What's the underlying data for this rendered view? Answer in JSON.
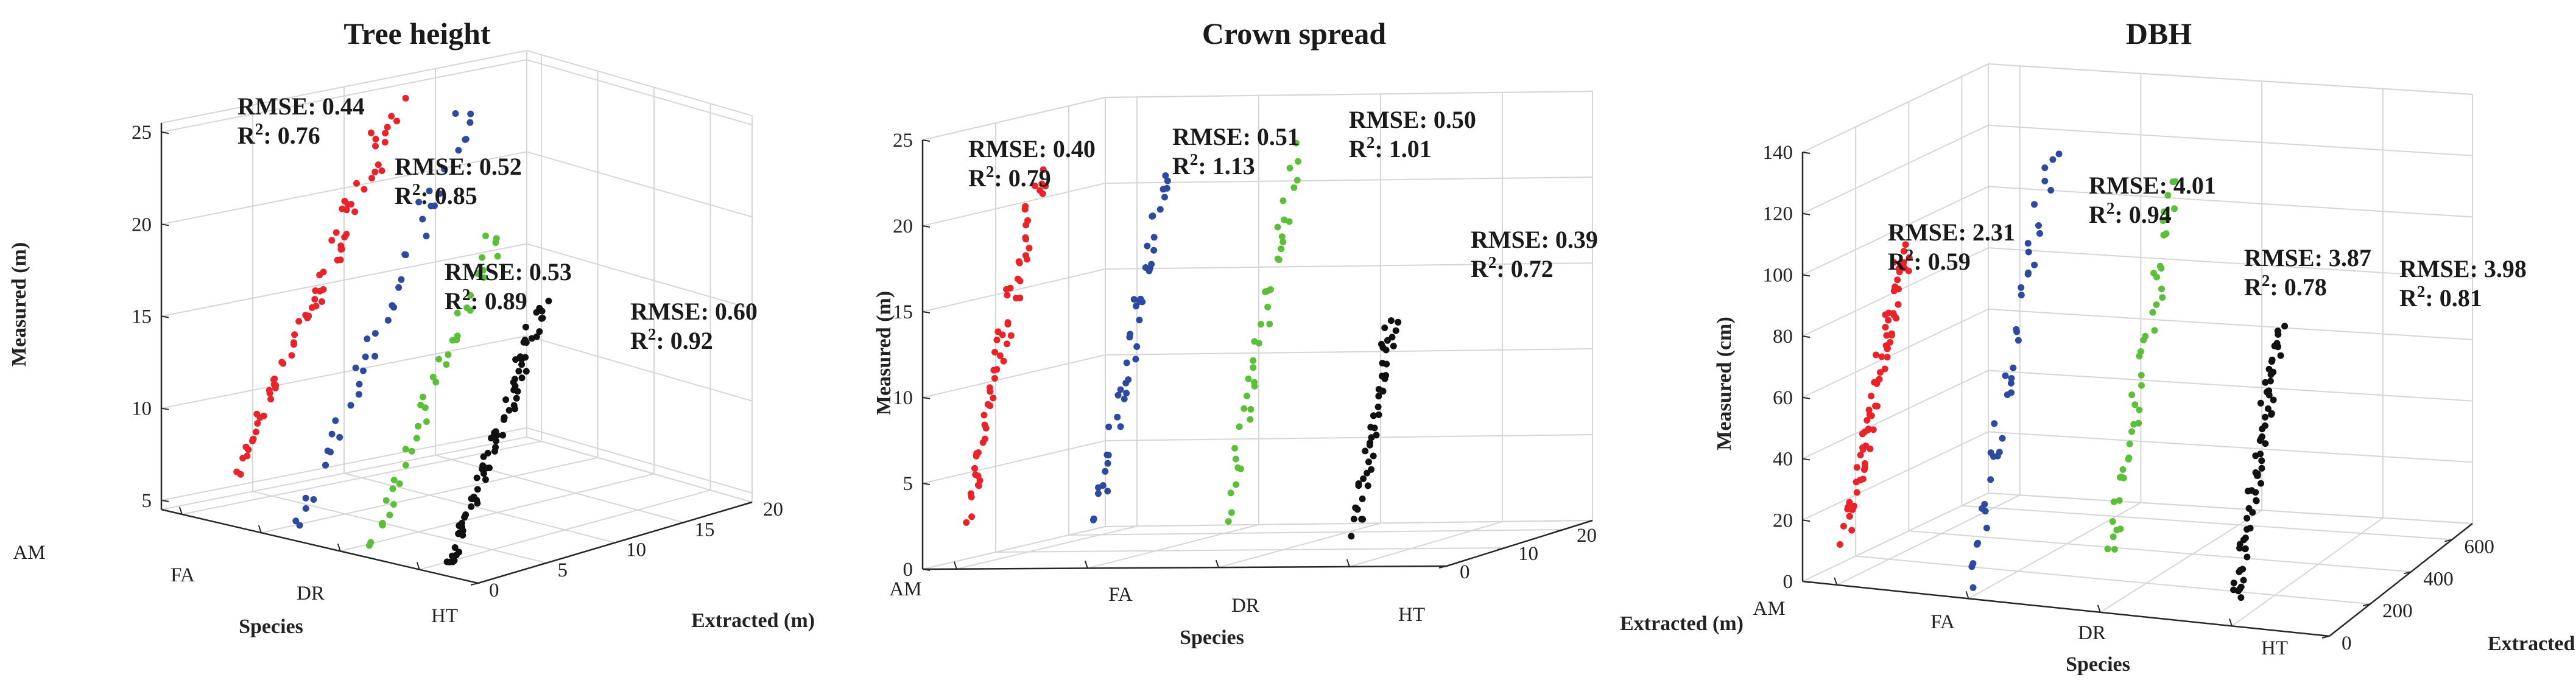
{
  "chart_data": [
    {
      "type": "scatter3d",
      "title": "Tree height",
      "xlabel": "Species",
      "ylabel": "Extracted (m)",
      "zlabel": "Measured (m)",
      "species": [
        "AM",
        "FA",
        "DR",
        "HT"
      ],
      "extracted_ticks": [
        "0",
        "5",
        "10",
        "15",
        "20"
      ],
      "measured_ticks": [
        "5",
        "10",
        "15",
        "20",
        "25"
      ],
      "extracted_range": [
        0,
        20
      ],
      "measured_range": [
        4.5,
        25.5
      ],
      "colors": [
        "#e8232a",
        "#2e4a9e",
        "#5bbf3a",
        "#111111"
      ],
      "annotations": [
        {
          "rmse": "RMSE: 0.44",
          "r2_label": "R",
          "r2_sup": "2",
          "r2_value": ": 0.76"
        },
        {
          "rmse": "RMSE: 0.52",
          "r2_label": "R",
          "r2_sup": "2",
          "r2_value": ": 0.85"
        },
        {
          "rmse": "RMSE: 0.53",
          "r2_label": "R",
          "r2_sup": "2",
          "r2_value": ": 0.89"
        },
        {
          "rmse": "RMSE: 0.60",
          "r2_label": "R",
          "r2_sup": "2",
          "r2_value": ": 0.92"
        }
      ],
      "series": [
        {
          "name": "AM",
          "range": [
            6,
            24
          ],
          "n": 70
        },
        {
          "name": "FA",
          "range": [
            4,
            25
          ],
          "n": 42
        },
        {
          "name": "DR",
          "range": [
            4,
            20
          ],
          "n": 40
        },
        {
          "name": "HT",
          "range": [
            4,
            17
          ],
          "n": 75
        }
      ]
    },
    {
      "type": "scatter3d",
      "title": "Crown spread",
      "xlabel": "Species",
      "ylabel": "Extracted (m)",
      "zlabel": "Measured (m)",
      "species": [
        "AM",
        "FA",
        "DR",
        "HT"
      ],
      "extracted_ticks": [
        "0",
        "10",
        "20"
      ],
      "measured_ticks": [
        "0",
        "5",
        "10",
        "15",
        "20",
        "25"
      ],
      "extracted_range": [
        0,
        25
      ],
      "measured_range": [
        0,
        25
      ],
      "colors": [
        "#e8232a",
        "#2e4a9e",
        "#5bbf3a",
        "#111111"
      ],
      "annotations": [
        {
          "rmse": "RMSE: 0.40",
          "r2_label": "R",
          "r2_sup": "2",
          "r2_value": ": 0.79"
        },
        {
          "rmse": "RMSE: 0.51",
          "r2_label": "R",
          "r2_sup": "2",
          "r2_value": ": 1.13"
        },
        {
          "rmse": "RMSE: 0.50",
          "r2_label": "R",
          "r2_sup": "2",
          "r2_value": ": 1.01"
        },
        {
          "rmse": "RMSE: 0.39",
          "r2_label": "R",
          "r2_sup": "2",
          "r2_value": ": 0.72"
        }
      ],
      "series": [
        {
          "name": "AM",
          "range": [
            3,
            22
          ],
          "n": 60
        },
        {
          "name": "FA",
          "range": [
            3,
            22
          ],
          "n": 45
        },
        {
          "name": "DR",
          "range": [
            3,
            23
          ],
          "n": 40
        },
        {
          "name": "HT",
          "range": [
            2,
            14
          ],
          "n": 45
        }
      ]
    },
    {
      "type": "scatter3d",
      "title": "DBH",
      "xlabel": "Species",
      "ylabel": "Extracted (cm)",
      "zlabel": "Measured (cm)",
      "species": [
        "AM",
        "FA",
        "DR",
        "HT"
      ],
      "extracted_ticks": [
        "0",
        "200",
        "400",
        "600"
      ],
      "measured_ticks": [
        "0",
        "20",
        "40",
        "60",
        "80",
        "100",
        "120",
        "140"
      ],
      "extracted_range": [
        0,
        700
      ],
      "measured_range": [
        0,
        140
      ],
      "colors": [
        "#e8232a",
        "#2e4a9e",
        "#5bbf3a",
        "#111111"
      ],
      "annotations": [
        {
          "rmse": "RMSE: 2.31",
          "r2_label": "R",
          "r2_sup": "2",
          "r2_value": ": 0.59"
        },
        {
          "rmse": "RMSE: 4.01",
          "r2_label": "R",
          "r2_sup": "2",
          "r2_value": ": 0.94"
        },
        {
          "rmse": "RMSE: 3.87",
          "r2_label": "R",
          "r2_sup": "2",
          "r2_value": ": 0.78"
        },
        {
          "rmse": "RMSE: 3.98",
          "r2_label": "R",
          "r2_sup": "2",
          "r2_value": ": 0.81"
        }
      ],
      "series": [
        {
          "name": "AM",
          "range": [
            15,
            100
          ],
          "n": 75
        },
        {
          "name": "FA",
          "range": [
            5,
            130
          ],
          "n": 40
        },
        {
          "name": "DR",
          "range": [
            15,
            125
          ],
          "n": 45
        },
        {
          "name": "HT",
          "range": [
            8,
            85
          ],
          "n": 65
        }
      ]
    }
  ]
}
